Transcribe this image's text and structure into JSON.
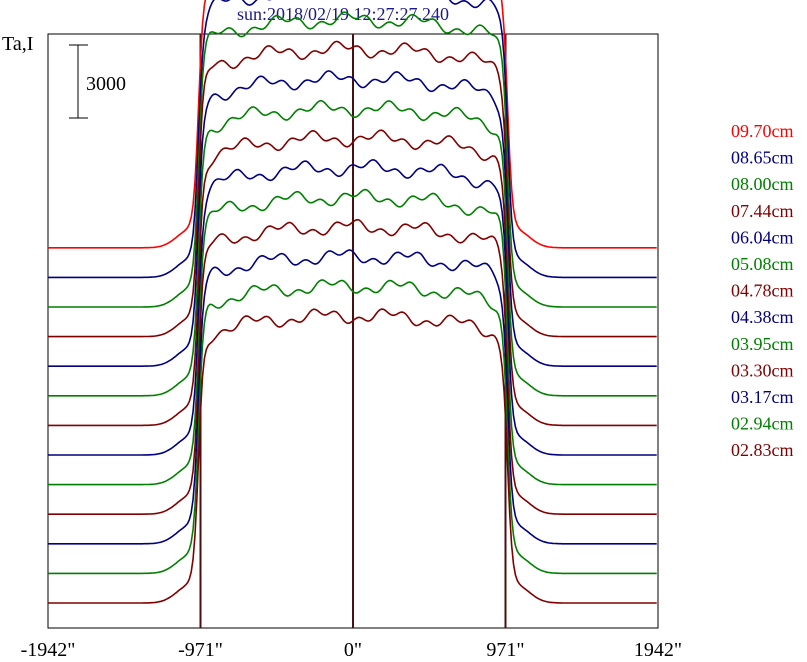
{
  "chart_data": {
    "type": "line",
    "title": "sun:2018/02/19 12:27:27.240",
    "ylabel": "Ta,I",
    "xlabel": "",
    "scale_bar_label": "3000",
    "scale_bar_value": 3000,
    "x_ticks": [
      {
        "value": -1942,
        "label": "-1942\""
      },
      {
        "value": -971,
        "label": "-971\""
      },
      {
        "value": 0,
        "label": "0\""
      },
      {
        "value": 971,
        "label": "971\""
      },
      {
        "value": 1942,
        "label": "1942\""
      }
    ],
    "xlim": [
      -1942,
      1942
    ],
    "vertical_markers": [
      -971,
      0,
      971
    ],
    "series": [
      {
        "name": "09.70cm",
        "color": "#ff0000",
        "offset": 0,
        "disk_level": 11800
      },
      {
        "name": "08.65cm",
        "color": "#000080",
        "offset": 0,
        "disk_level": 11800
      },
      {
        "name": "08.00cm",
        "color": "#008000",
        "offset": 0,
        "disk_level": 11800
      },
      {
        "name": "07.44cm",
        "color": "#800000",
        "offset": 0,
        "disk_level": 11800
      },
      {
        "name": "06.04cm",
        "color": "#000080",
        "offset": 0,
        "disk_level": 11800
      },
      {
        "name": "05.08cm",
        "color": "#008000",
        "offset": 0,
        "disk_level": 11800
      },
      {
        "name": "04.78cm",
        "color": "#800000",
        "offset": 0,
        "disk_level": 11800
      },
      {
        "name": "04.38cm",
        "color": "#000080",
        "offset": 0,
        "disk_level": 11800
      },
      {
        "name": "03.95cm",
        "color": "#008000",
        "offset": 0,
        "disk_level": 11800
      },
      {
        "name": "03.30cm",
        "color": "#800000",
        "offset": 0,
        "disk_level": 11800
      },
      {
        "name": "03.17cm",
        "color": "#000080",
        "offset": 0,
        "disk_level": 11800
      },
      {
        "name": "02.94cm",
        "color": "#008000",
        "offset": 0,
        "disk_level": 11800
      },
      {
        "name": "02.83cm",
        "color": "#800000",
        "offset": 0,
        "disk_level": 11800
      }
    ],
    "grid": false,
    "legend_position": "right"
  }
}
